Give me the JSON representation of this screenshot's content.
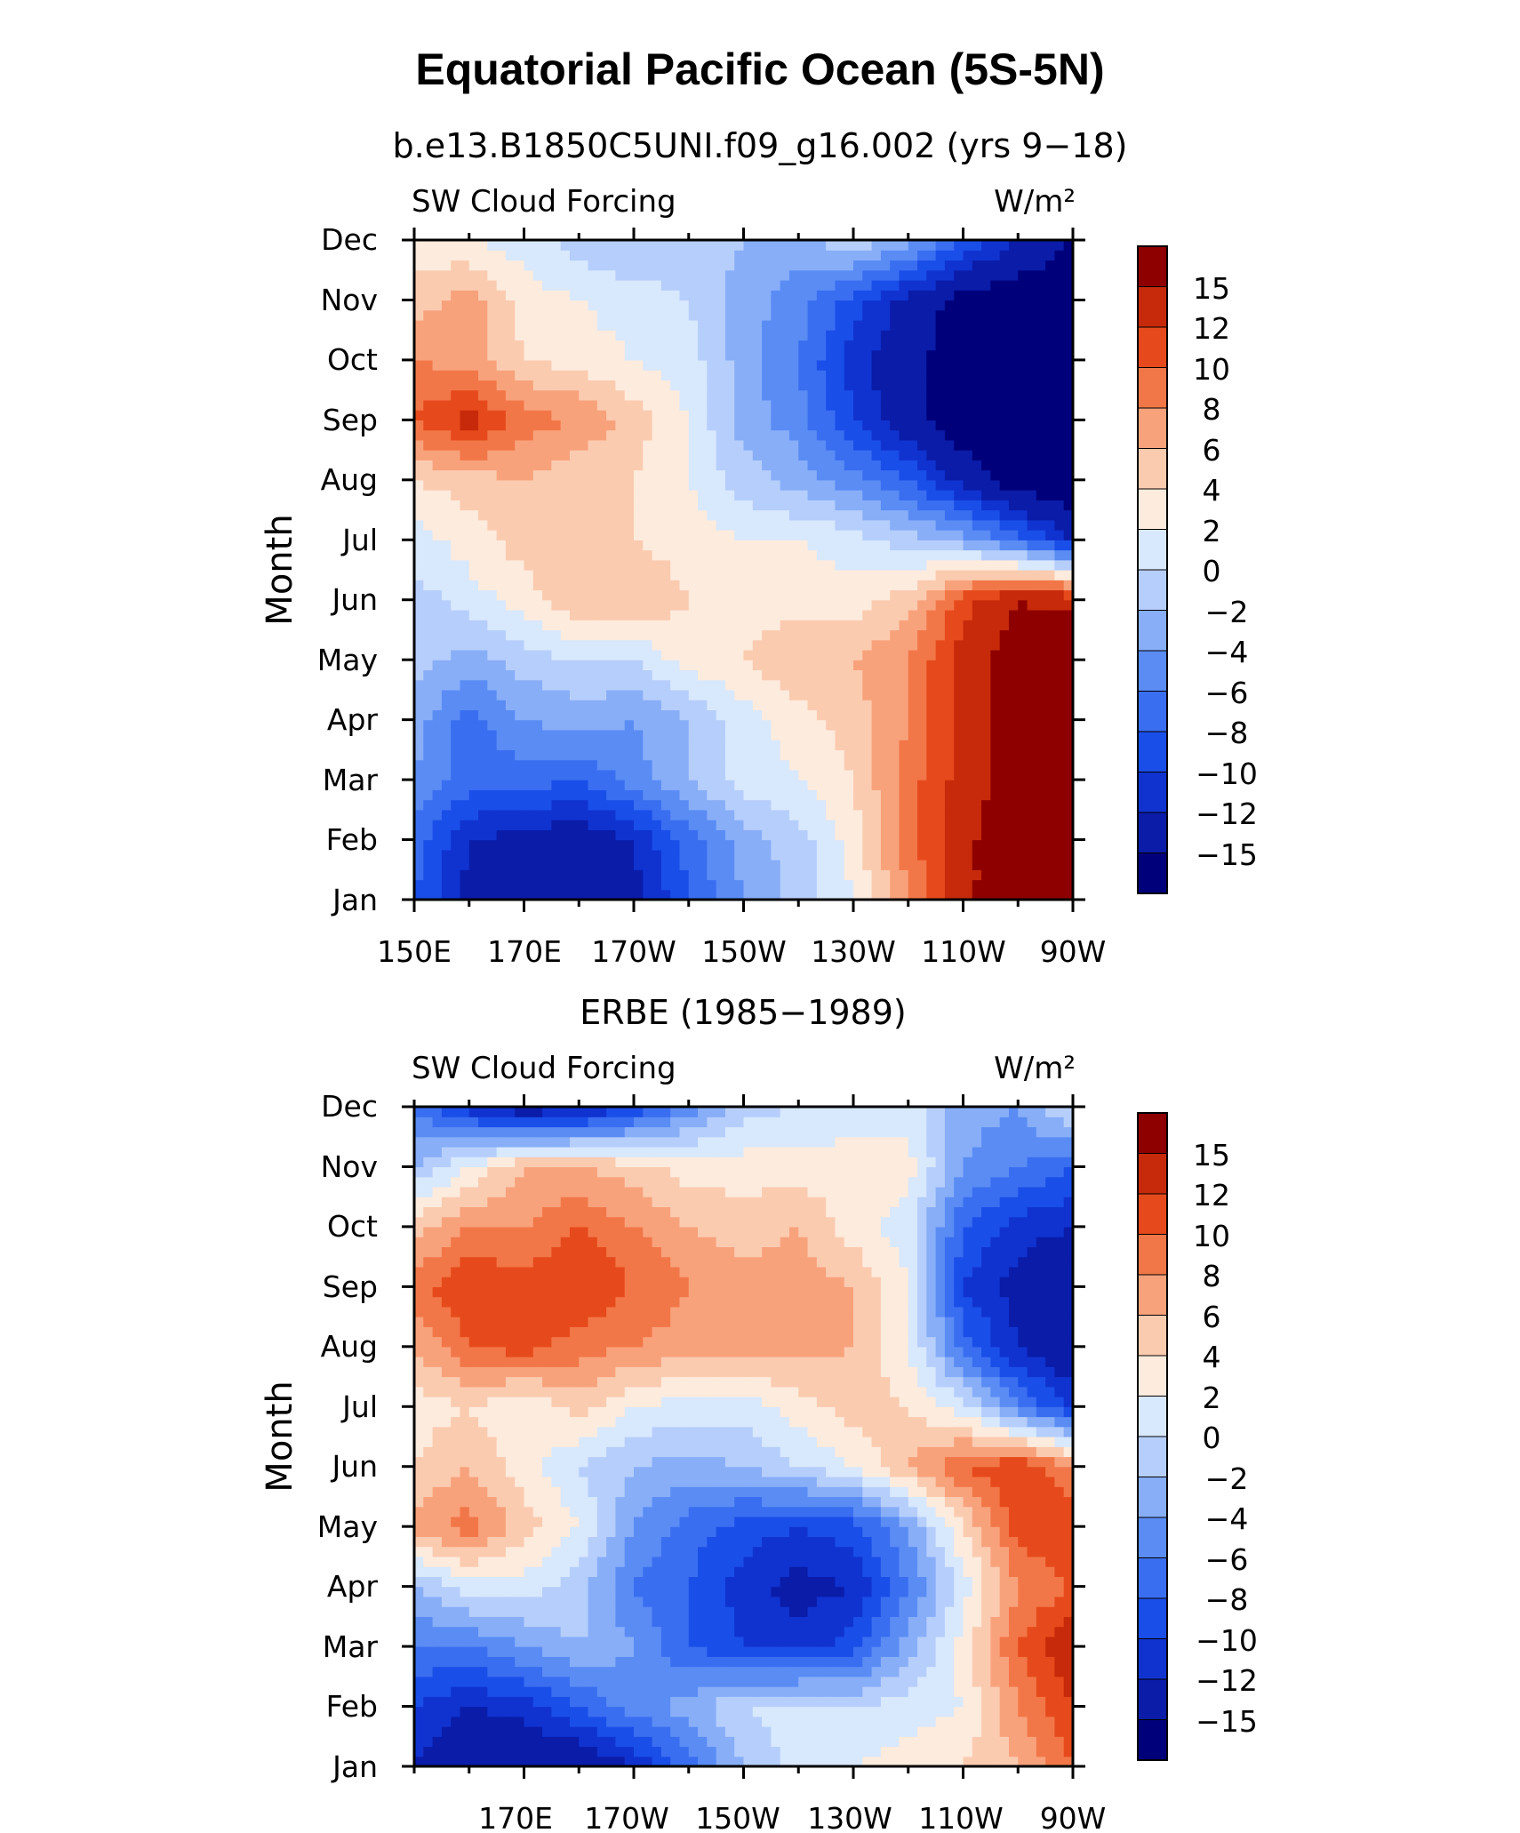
{
  "title": "Equatorial Pacific Ocean (5S-5N)",
  "colors": {
    "levels": [
      -15,
      -12,
      -10,
      -8,
      -6,
      -4,
      -2,
      0,
      2,
      4,
      6,
      8,
      10,
      12,
      15
    ],
    "fills": [
      "#00007a",
      "#0a1ca8",
      "#1033d0",
      "#1a4ee8",
      "#3a6ef0",
      "#5a8cf4",
      "#88aef8",
      "#b6cefb",
      "#d8e8fd",
      "#fdebdd",
      "#fbcbb0",
      "#f8a27c",
      "#f27748",
      "#e64a1c",
      "#c62a0a",
      "#8e0000"
    ]
  },
  "panels": [
    {
      "title": "b.e13.B1850C5UNI.f09_g16.002 (yrs 9−18)",
      "left_label": "SW Cloud Forcing",
      "right_label": "W/m²",
      "ylabel": "Month",
      "xtick_labels": [
        "150E",
        "170E",
        "170W",
        "150W",
        "130W",
        "110W",
        "90W"
      ],
      "ytick_labels": [
        "Jan",
        "Feb",
        "Mar",
        "Apr",
        "May",
        "Jun",
        "Jul",
        "Aug",
        "Sep",
        "Oct",
        "Nov",
        "Dec"
      ],
      "colorbar_labels": [
        "−15",
        "−12",
        "−10",
        "−8",
        "−6",
        "−4",
        "−2",
        "0",
        "2",
        "4",
        "6",
        "8",
        "10",
        "12",
        "15"
      ]
    },
    {
      "title": "ERBE (1985−1989)",
      "left_label": "SW Cloud Forcing",
      "right_label": "W/m²",
      "ylabel": "Month",
      "xtick_labels": [
        "170E",
        "170W",
        "150W",
        "130W",
        "110W",
        "90W"
      ],
      "ytick_labels": [
        "Jan",
        "Feb",
        "Mar",
        "Apr",
        "May",
        "Jun",
        "Jul",
        "Aug",
        "Sep",
        "Oct",
        "Nov",
        "Dec"
      ],
      "colorbar_labels": [
        "−15",
        "−12",
        "−10",
        "−8",
        "−6",
        "−4",
        "−2",
        "0",
        "2",
        "4",
        "6",
        "8",
        "10",
        "12",
        "15"
      ]
    }
  ],
  "chart_data": [
    {
      "type": "heatmap",
      "title": "b.e13.B1850C5UNI.f09_g16.002 (yrs 9−18)",
      "xlabel": "",
      "ylabel": "Month",
      "units": "W/m²",
      "x": [
        150,
        160,
        170,
        180,
        190,
        200,
        210,
        220,
        230,
        240,
        250,
        260,
        270
      ],
      "x_labels": [
        "150E",
        "170E",
        "170W",
        "150W",
        "130W",
        "110W",
        "90W"
      ],
      "x_tick_values": [
        150,
        170,
        190,
        210,
        230,
        250,
        270
      ],
      "y": [
        "Jan",
        "Feb",
        "Mar",
        "Apr",
        "May",
        "Jun",
        "Jul",
        "Aug",
        "Sep",
        "Oct",
        "Nov",
        "Dec"
      ],
      "xlim": [
        150,
        270
      ],
      "levels": [
        -15,
        -12,
        -10,
        -8,
        -6,
        -4,
        -2,
        0,
        2,
        4,
        6,
        8,
        10,
        12,
        15
      ],
      "z": [
        [
          -8,
          -13,
          -14,
          -15,
          -13,
          -8,
          -4,
          -1,
          2,
          8,
          14,
          18,
          20
        ],
        [
          -7,
          -12,
          -13,
          -14,
          -12,
          -7,
          -3,
          -1,
          3,
          9,
          14,
          18,
          19
        ],
        [
          -4,
          -7,
          -7,
          -8,
          -5,
          -2,
          1,
          2,
          4,
          9,
          13,
          17,
          18
        ],
        [
          -3,
          -7,
          -4,
          -3,
          -4,
          -2,
          1,
          3,
          5,
          8,
          13,
          17,
          18
        ],
        [
          -1,
          -3,
          -1,
          0,
          0,
          3,
          4,
          6,
          6,
          8,
          13,
          17,
          18
        ],
        [
          -1,
          1,
          3,
          6,
          6,
          4,
          3,
          3,
          3,
          5,
          11,
          15,
          14
        ],
        [
          1,
          3,
          5,
          4,
          4,
          3,
          2,
          2,
          1,
          -1,
          -3,
          -7,
          -12
        ],
        [
          4,
          5,
          6,
          4,
          4,
          2,
          -1,
          -3,
          -5,
          -8,
          -13,
          -17,
          -18
        ],
        [
          10,
          13,
          9,
          8,
          5,
          2,
          -3,
          -5,
          -10,
          -14,
          -17,
          -18,
          -18
        ],
        [
          8,
          7,
          4,
          3,
          2,
          1,
          -3,
          -6,
          -11,
          -14,
          -17,
          -18,
          -18
        ],
        [
          5,
          7,
          3,
          2,
          1,
          0,
          -3,
          -5,
          -9,
          -13,
          -16,
          -17,
          -18
        ],
        [
          3,
          2,
          1,
          -1,
          -2,
          -1,
          -2,
          -3,
          0,
          -3,
          -8,
          -12,
          -15
        ]
      ]
    },
    {
      "type": "heatmap",
      "title": "ERBE (1985−1989)",
      "xlabel": "",
      "ylabel": "Month",
      "units": "W/m²",
      "x": [
        150,
        160,
        170,
        180,
        190,
        200,
        210,
        220,
        230,
        240,
        250,
        260,
        270
      ],
      "x_labels": [
        "170E",
        "170W",
        "150W",
        "130W",
        "110W",
        "90W"
      ],
      "x_tick_values": [
        170,
        190,
        210,
        230,
        250,
        270
      ],
      "y": [
        "Jan",
        "Feb",
        "Mar",
        "Apr",
        "May",
        "Jun",
        "Jul",
        "Aug",
        "Sep",
        "Oct",
        "Nov",
        "Dec"
      ],
      "xlim": [
        150,
        270
      ],
      "levels": [
        -15,
        -12,
        -10,
        -8,
        -6,
        -4,
        -2,
        0,
        2,
        4,
        6,
        8,
        10,
        12,
        15
      ],
      "z": [
        [
          -12,
          -15,
          -15,
          -15,
          -12,
          -7,
          -2,
          1,
          2,
          3,
          4,
          6,
          10
        ],
        [
          -10,
          -12,
          -11,
          -8,
          -5,
          -3,
          0,
          1,
          0,
          1,
          2,
          8,
          12
        ],
        [
          -6,
          -6,
          -4,
          -2,
          -4,
          -8,
          -10,
          -11,
          -9,
          -3,
          3,
          10,
          14
        ],
        [
          -2,
          1,
          1,
          -1,
          -6,
          -8,
          -11,
          -13,
          -12,
          -6,
          1,
          8,
          10
        ],
        [
          7,
          9,
          5,
          2,
          -4,
          -7,
          -9,
          -10,
          -9,
          -4,
          4,
          11,
          12
        ],
        [
          4,
          6,
          3,
          0,
          -2,
          -3,
          -2,
          0,
          2,
          6,
          10,
          12,
          8
        ],
        [
          3,
          4,
          2,
          5,
          2,
          1,
          1,
          3,
          5,
          4,
          1,
          -6,
          -10
        ],
        [
          6,
          10,
          11,
          9,
          8,
          7,
          7,
          7,
          6,
          2,
          -7,
          -12,
          -15
        ],
        [
          9,
          12,
          11,
          12,
          10,
          8,
          7,
          7,
          6,
          2,
          -10,
          -13,
          -15
        ],
        [
          5,
          8,
          8,
          10,
          8,
          6,
          5,
          6,
          3,
          1,
          -8,
          -11,
          -12
        ],
        [
          -2,
          2,
          6,
          6,
          5,
          3,
          3,
          3,
          3,
          3,
          -4,
          -6,
          -8
        ],
        [
          -6,
          -11,
          -14,
          -13,
          -10,
          -5,
          -1,
          0,
          1,
          1,
          -3,
          -4,
          1
        ]
      ]
    }
  ]
}
